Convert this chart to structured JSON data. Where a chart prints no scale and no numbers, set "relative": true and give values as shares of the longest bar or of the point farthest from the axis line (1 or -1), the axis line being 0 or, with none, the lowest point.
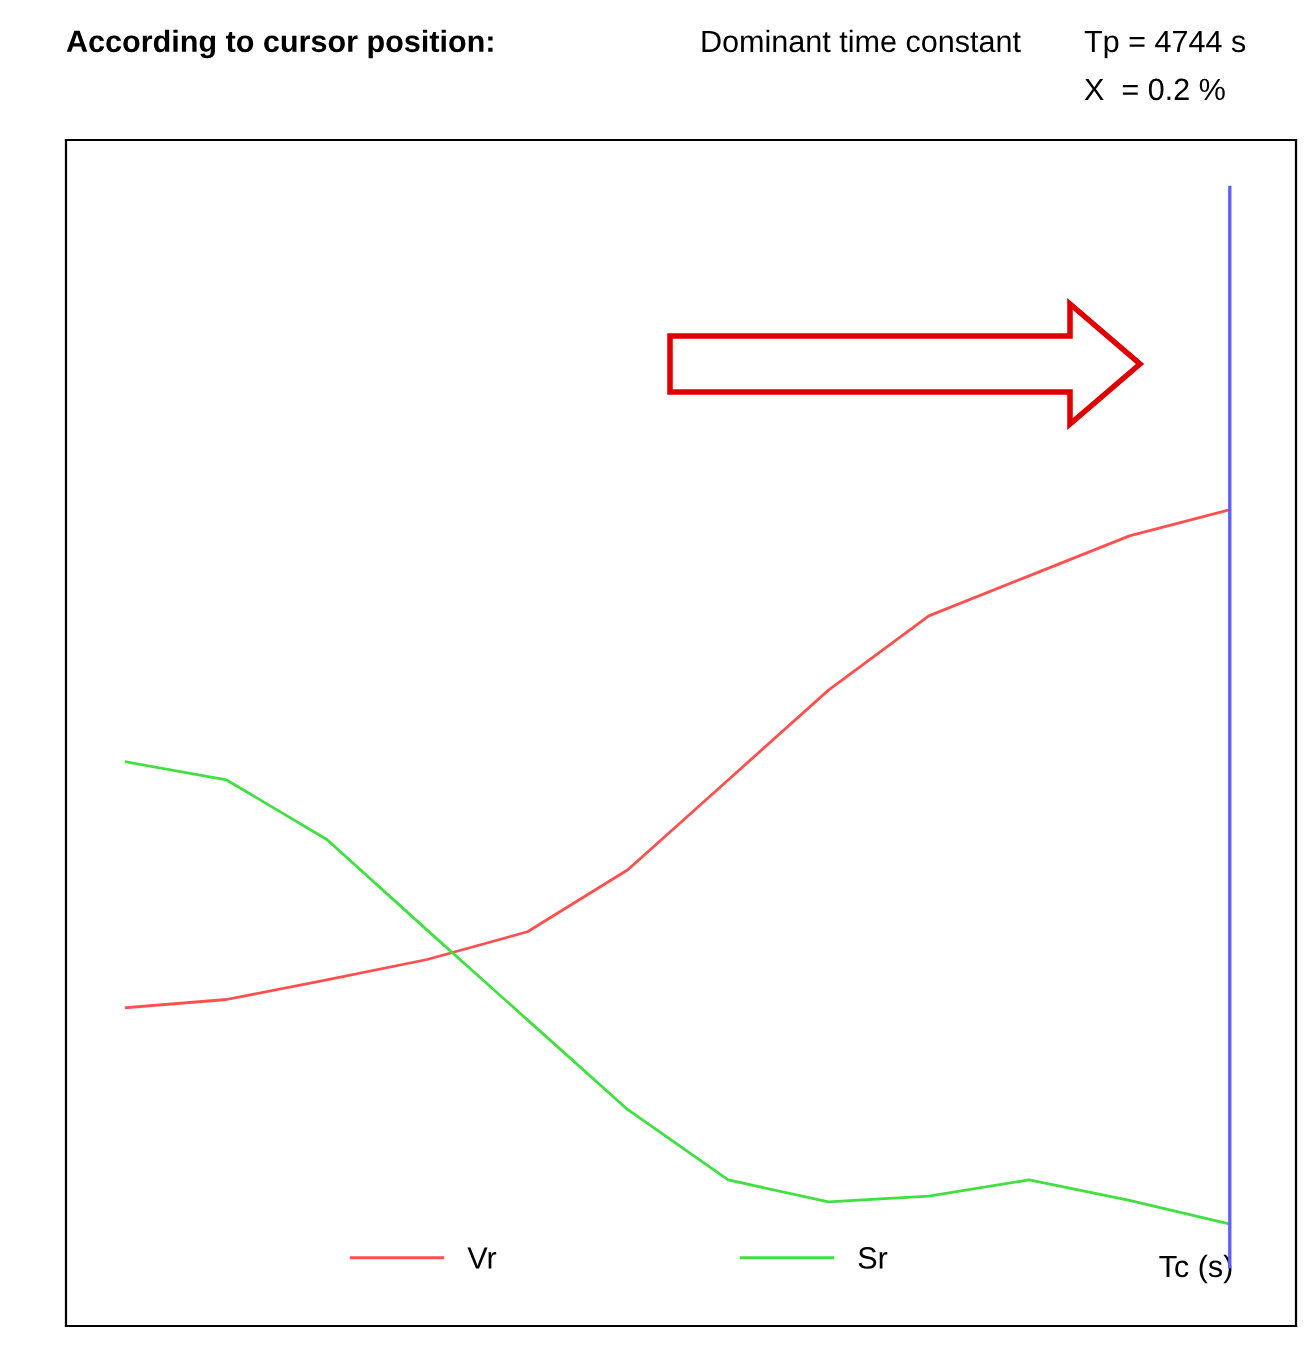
{
  "chart_data": {
    "type": "line",
    "relative": true,
    "title": "According to cursor position:",
    "annotations": [
      "Dominant time constant",
      "Tp = 4744 s",
      "X  = 0.2 %"
    ],
    "xlabel": "Tc (s)",
    "categories": [
      null,
      null,
      null,
      null,
      null,
      null,
      null,
      null,
      null,
      null,
      null,
      null
    ],
    "series": [
      {
        "name": "Vr",
        "color": "#ff5050",
        "values": [
          0.39,
          0.4,
          0.424,
          0.449,
          0.483,
          0.559,
          0.669,
          0.779,
          0.87,
          0.919,
          0.968,
          1
        ]
      },
      {
        "name": "Sr",
        "color": "#40e040",
        "values": [
          0.691,
          0.669,
          0.596,
          0.485,
          0.375,
          0.265,
          0.179,
          0.152,
          0.159,
          0.179,
          0.154,
          0.125
        ]
      }
    ],
    "legend": "bottom",
    "marker": "none",
    "line_style": "solid"
  }
}
